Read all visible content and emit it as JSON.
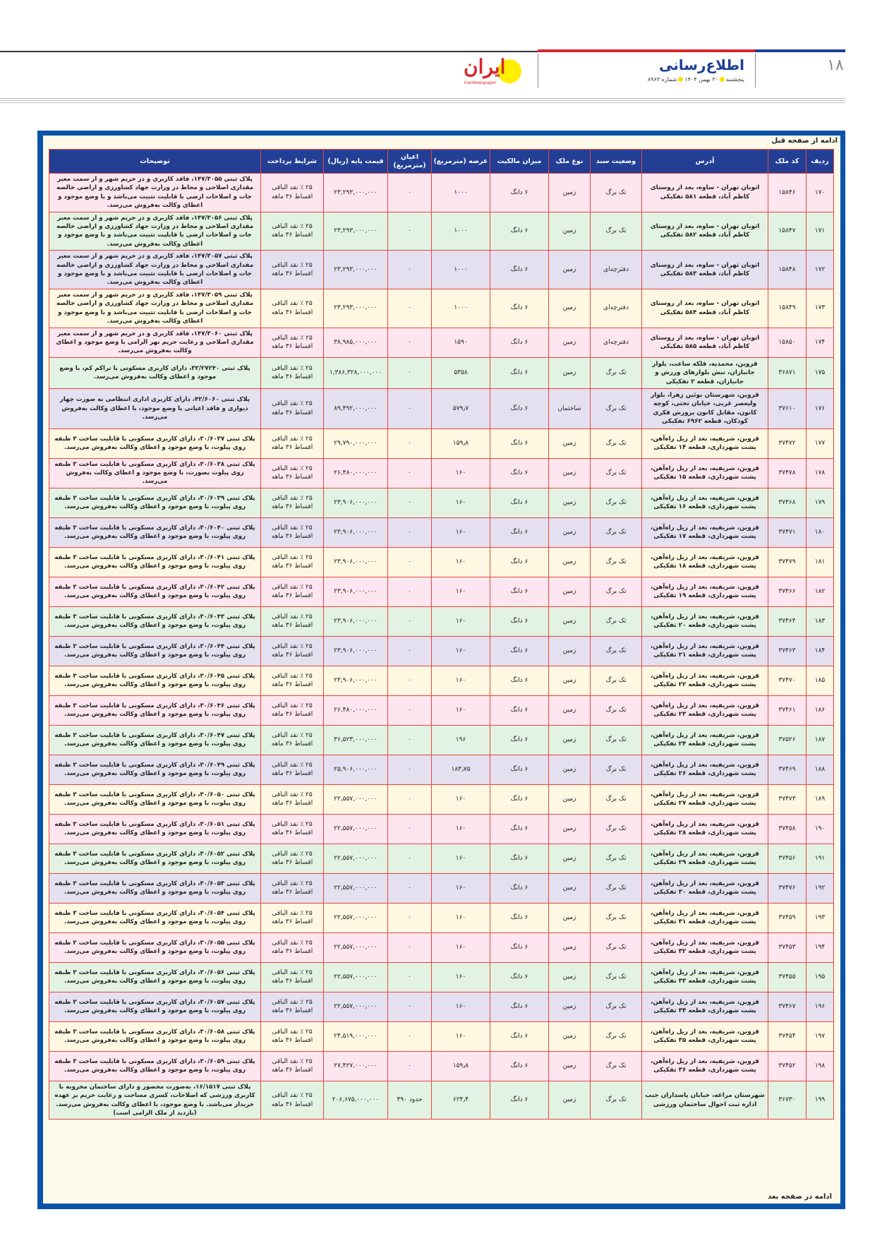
{
  "header": {
    "page_number": "۱۸",
    "section_title": "اطلاع‌رسانی",
    "day": "پنجشنبه",
    "date": "۳۰ بهمن ۱۴۰۴",
    "issue": "شماره ۸۹۶۳",
    "logo_text": "ایران",
    "logo_sub": "IranNewspaper"
  },
  "colors": {
    "header_blue": "#233f95",
    "frame_blue": "#0b53a8",
    "border_red": "#e5473f",
    "row_cycle": [
      "#fde6ef",
      "#e2f2e3",
      "#e4e0ef",
      "#fef8e3"
    ]
  },
  "table": {
    "continued_from": "ادامه از صفحه قبل",
    "continued_to": "ادامه در صفحه بعد",
    "columns": [
      "ردیف",
      "کد ملک",
      "آدرس",
      "وضعیت سند",
      "نوع ملک",
      "میزان مالکیت",
      "عرصه (مترمربع)",
      "اعیان (مترمربع)",
      "قیمت پایه (ریال)",
      "شرایط پرداخت",
      "توضیحات"
    ],
    "rows": [
      {
        "n": "۱۷۰",
        "code": "۱۵۸۴۶",
        "addr": "اتوبان تهران - ساوه، بعد از روستای کاظم آباد، قطعه ۵۸۱ تفکیکی",
        "doc": "تک برگ",
        "type": "زمین",
        "own": "۶ دانگ",
        "area": "۱۰۰۰",
        "bldg": "۰",
        "price": "۲۳,۲۹۳,۰۰۰,۰۰۰",
        "pay": "۲۵ ٪ نقد الباقی اقساط ۳۶ ماهه",
        "desc": "پلاک ثبتی ۱۴۷/۳۰۵۵، فاقد کاربری و در حریم شهر و از سمت معبر مقداری اصلاحی و محاط در وزارت جهاد کشاورزی و اراضی خالصه جات و اصلاحات ارضی با قابلیت تثبیت می‌باشد و با وضع موجود و اعطای وکالت به‌فروش می‌رسد."
      },
      {
        "n": "۱۷۱",
        "code": "۱۵۸۴۷",
        "addr": "اتوبان تهران - ساوه، بعد از روستای کاظم آباد، قطعه ۵۸۲ تفکیکی",
        "doc": "تک برگ",
        "type": "زمین",
        "own": "۶ دانگ",
        "area": "۱۰۰۰",
        "bldg": "۰",
        "price": "۲۳,۲۹۳,۰۰۰,۰۰۰",
        "pay": "۲۵ ٪ نقد الباقی اقساط ۳۶ ماهه",
        "desc": "پلاک ثبتی ۱۴۷/۳۰۵۶، فاقد کاربری و در حریم شهر و از سمت معبر مقداری اصلاحی و محاط در وزارت جهاد کشاورزی و اراضی خالصه جات و اصلاحات ارضی با قابلیت تثبیت می‌باشد و با وضع موجود و اعطای وکالت به‌فروش می‌رسد."
      },
      {
        "n": "۱۷۲",
        "code": "۱۵۸۴۸",
        "addr": "اتوبان تهران - ساوه، بعد از روستای کاظم آباد، قطعه ۵۸۳ تفکیکی",
        "doc": "دفترچه‌ای",
        "type": "زمین",
        "own": "۶ دانگ",
        "area": "۱۰۰۰",
        "bldg": "۰",
        "price": "۲۳,۲۹۳,۰۰۰,۰۰۰",
        "pay": "۲۵ ٪ نقد الباقی اقساط ۳۶ ماهه",
        "desc": "پلاک ثبتی ۱۴۷/۳۰۵۷، فاقد کاربری و در حریم شهر و از سمت معبر مقداری اصلاحی و محاط در وزارت جهاد کشاورزی و اراضی خالصه جات و اصلاحات ارضی با قابلیت تثبیت می‌باشد و با وضع موجود و اعطای وکالت به‌فروش می‌رسد."
      },
      {
        "n": "۱۷۳",
        "code": "۱۵۸۴۹",
        "addr": "اتوبان تهران - ساوه، بعد از روستای کاظم آباد، قطعه ۵۸۴ تفکیکی",
        "doc": "دفترچه‌ای",
        "type": "زمین",
        "own": "۶ دانگ",
        "area": "۱۰۰۰",
        "bldg": "۰",
        "price": "۲۳,۲۹۳,۰۰۰,۰۰۰",
        "pay": "۲۵ ٪ نقد الباقی اقساط ۳۶ ماهه",
        "desc": "پلاک ثبتی ۱۴۷/۳۰۵۹، فاقد کاربری و در حریم شهر و از سمت معبر مقداری اصلاحی و محاط در وزارت جهاد کشاورزی و اراضی خالصه جات و اصلاحات ارضی با قابلیت تثبیت می‌باشد و با وضع موجود و اعطای وکالت به‌فروش می‌رسد."
      },
      {
        "n": "۱۷۴",
        "code": "۱۵۸۵۰",
        "addr": "اتوبان تهران - ساوه، بعد از روستای کاظم آباد، قطعه ۵۸۵ تفکیکی",
        "doc": "دفترچه‌ای",
        "type": "زمین",
        "own": "۶ دانگ",
        "area": "۱۵۹۰",
        "bldg": "۰",
        "price": "۳۸,۹۸۵,۰۰۰,۰۰۰",
        "pay": "۲۵ ٪ نقد الباقی اقساط ۳۶ ماهه",
        "desc": "پلاک ثبتی ۱۴۷/۳۰۶۰، فاقد کاربری و در حریم شهر و از سمت معبر مقداری اصلاحی و رعایت حریم نهر الزامی با وضع موجود و اعطای وکالت به‌فروش می‌رسد."
      },
      {
        "n": "۱۷۵",
        "code": "۳۶۸۷۱",
        "addr": "قزوین، محمدیه، فلکه ساعت، بلوار جانبازان، نبش بلوارهای ورزش و جانبازان، قطعه ۲ تفکیکی",
        "doc": "تک برگ",
        "type": "زمین",
        "own": "۶ دانگ",
        "area": "۵۳۵۸",
        "bldg": "۰",
        "price": "۱,۳۸۶,۳۲۸,۰۰۰,۰۰۰",
        "pay": "۲۵ ٪ نقد الباقی اقساط ۳۶ ماهه",
        "desc": "پلاک ثبتی ۳۲/۲۷۲۴۰، دارای کاربری مسکونی با تراکم کم، با وضع موجود و اعطای وکالت به‌فروش می‌رسد."
      },
      {
        "n": "۱۷۶",
        "code": "۳۷۶۱۰",
        "addr": "قزوین، شهرستان بوئین زهرا، بلوار ولیعصر غربی، خیابان تختی، کوچه کانون، مقابل کانون پرورش فکری کودکان، قطعه ۶۹۶۲ تفکیکی",
        "doc": "تک برگ",
        "type": "ساختمان",
        "own": "۶ دانگ",
        "area": "۵۷۹٫۷",
        "bldg": "۰",
        "price": "۸۹,۴۹۲,۰۰۰,۰۰۰",
        "pay": "۲۵ ٪ نقد الباقی اقساط ۳۶ ماهه",
        "desc": "پلاک ثبتی ۴۲/۶۰۶۰، دارای کاربری اداری انتظامی به صورت چهار دیواری و فاقد اعیانی با وضع موجود، با اعطای وکالت به‌فروش می‌رسد."
      },
      {
        "n": "۱۷۷",
        "code": "۳۷۴۷۲",
        "addr": "قزوین، شریفیه، بعد از ریل راه‌آهن، پشت شهرداری، قطعه ۱۴ تفکیکی",
        "doc": "تک برگ",
        "type": "زمین",
        "own": "۶ دانگ",
        "area": "۱۵۹٫۸",
        "bldg": "۰",
        "price": "۲۹,۷۹۰,۰۰۰,۰۰۰",
        "pay": "۲۵ ٪ نقد الباقی اقساط ۳۶ ماهه",
        "desc": "پلاک ثبتی ۳۰/۶۰۳۷، دارای کاربری مسکونی با قابلیت ساخت ۳ طبقه روی پیلوت، با وضع موجود و اعطای وکالت به‌فروش می‌رسد."
      },
      {
        "n": "۱۷۸",
        "code": "۳۷۴۷۸",
        "addr": "قزوین، شریفیه، بعد از ریل راه‌آهن، پشت شهرداری، قطعه ۱۵ تفکیکی",
        "doc": "تک برگ",
        "type": "زمین",
        "own": "۶ دانگ",
        "area": "۱۶۰",
        "bldg": "۰",
        "price": "۲۶,۴۸۰,۰۰۰,۰۰۰",
        "pay": "۲۵ ٪ نقد الباقی اقساط ۳۶ ماهه",
        "desc": "پلاک ثبتی ۳۰/۶۰۳۸، دارای کاربری مسکونی با قابلیت ساخت ۳ طبقه روی پیلوت بصورت، با وضع موجود و اعطای وکالت به‌فروش می‌رسد."
      },
      {
        "n": "۱۷۹",
        "code": "۳۷۴۶۸",
        "addr": "قزوین، شریفیه، بعد از ریل راه‌آهن، پشت شهرداری، قطعه ۱۶ تفکیکی",
        "doc": "تک برگ",
        "type": "زمین",
        "own": "۶ دانگ",
        "area": "۱۶۰",
        "bldg": "۰",
        "price": "۲۳,۹۰۶,۰۰۰,۰۰۰",
        "pay": "۲۵ ٪ نقد الباقی اقساط ۳۶ ماهه",
        "desc": "پلاک ثبتی ۳۰/۶۰۳۹، دارای کاربری مسکونی با قابلیت ساخت ۳ طبقه روی پیلوت، با وضع موجود و اعطای وکالت به‌فروش می‌رسد."
      },
      {
        "n": "۱۸۰",
        "code": "۳۷۴۷۱",
        "addr": "قزوین، شریفیه، بعد از ریل راه‌آهن، پشت شهرداری، قطعه ۱۷ تفکیکی",
        "doc": "تک برگ",
        "type": "زمین",
        "own": "۶ دانگ",
        "area": "۱۶۰",
        "bldg": "۰",
        "price": "۲۳,۹۰۶,۰۰۰,۰۰۰",
        "pay": "۲۵ ٪ نقد الباقی اقساط ۳۶ ماهه",
        "desc": "پلاک ثبتی ۳۰/۶۰۴۰، دارای کاربری مسکونی با قابلیت ساخت ۳ طبقه روی پیلوت، با وضع موجود و اعطای وکالت به‌فروش می‌رسد."
      },
      {
        "n": "۱۸۱",
        "code": "۳۷۴۷۹",
        "addr": "قزوین، شریفیه، بعد از ریل راه‌آهن، پشت شهرداری، قطعه ۱۸ تفکیکی",
        "doc": "تک برگ",
        "type": "زمین",
        "own": "۶ دانگ",
        "area": "۱۶۰",
        "bldg": "۰",
        "price": "۲۳,۹۰۶,۰۰۰,۰۰۰",
        "pay": "۲۵ ٪ نقد الباقی اقساط ۳۶ ماهه",
        "desc": "پلاک ثبتی ۳۰/۶۰۴۱، دارای کاربری مسکونی با قابلیت ساخت ۳ طبقه روی پیلوت، با وضع موجود و اعطای وکالت به‌فروش می‌رسد."
      },
      {
        "n": "۱۸۲",
        "code": "۳۷۴۶۶",
        "addr": "قزوین، شریفیه، بعد از ریل راه‌آهن، پشت شهرداری، قطعه ۱۹ تفکیکی",
        "doc": "تک برگ",
        "type": "زمین",
        "own": "۶ دانگ",
        "area": "۱۶۰",
        "bldg": "۰",
        "price": "۲۳,۹۰۶,۰۰۰,۰۰۰",
        "pay": "۲۵ ٪ نقد الباقی اقساط ۳۶ ماهه",
        "desc": "پلاک ثبتی ۳۰/۶۰۴۲، دارای کاربری مسکونی با قابلیت ساخت ۳ طبقه روی پیلوت، با وضع موجود و اعطای وکالت به‌فروش می‌رسد."
      },
      {
        "n": "۱۸۳",
        "code": "۳۷۴۶۴",
        "addr": "قزوین، شریفیه، بعد از ریل راه‌آهن، پشت شهرداری، قطعه ۲۰ تفکیکی",
        "doc": "تک برگ",
        "type": "زمین",
        "own": "۶ دانگ",
        "area": "۱۶۰",
        "bldg": "۰",
        "price": "۲۳,۹۰۶,۰۰۰,۰۰۰",
        "pay": "۲۵ ٪ نقد الباقی اقساط ۳۶ ماهه",
        "desc": "پلاک ثبتی ۳۰/۶۰۴۳، دارای کاربری مسکونی با قابلیت ساخت ۳ طبقه روی پیلوت، با وضع موجود و اعطای وکالت به‌فروش می‌رسد."
      },
      {
        "n": "۱۸۴",
        "code": "۳۷۴۶۳",
        "addr": "قزوین، شریفیه، بعد از ریل راه‌آهن، پشت شهرداری، قطعه ۲۱ تفکیکی",
        "doc": "تک برگ",
        "type": "زمین",
        "own": "۶ دانگ",
        "area": "۱۶۰",
        "bldg": "۰",
        "price": "۲۳,۹۰۶,۰۰۰,۰۰۰",
        "pay": "۲۵ ٪ نقد الباقی اقساط ۳۶ ماهه",
        "desc": "پلاک ثبتی ۳۰/۶۰۴۴، دارای کاربری مسکونی با قابلیت ساخت ۳ طبقه روی پیلوت، با وضع موجود و اعطای وکالت به‌فروش می‌رسد."
      },
      {
        "n": "۱۸۵",
        "code": "۳۷۴۷۰",
        "addr": "قزوین، شریفیه، بعد از ریل راه‌آهن، پشت شهرداری، قطعه ۲۲ تفکیکی",
        "doc": "تک برگ",
        "type": "زمین",
        "own": "۶ دانگ",
        "area": "۱۶۰",
        "bldg": "۰",
        "price": "۲۳,۹۰۶,۰۰۰,۰۰۰",
        "pay": "۲۵ ٪ نقد الباقی اقساط ۳۶ ماهه",
        "desc": "پلاک ثبتی ۳۰/۶۰۴۵، دارای کاربری مسکونی با قابلیت ساخت ۳ طبقه روی پیلوت، با وضع موجود و اعطای وکالت به‌فروش می‌رسد."
      },
      {
        "n": "۱۸۶",
        "code": "۳۷۴۶۱",
        "addr": "قزوین، شریفیه، بعد از ریل راه‌آهن، پشت شهرداری، قطعه ۲۳ تفکیکی",
        "doc": "تک برگ",
        "type": "زمین",
        "own": "۶ دانگ",
        "area": "۱۶۰",
        "bldg": "۰",
        "price": "۲۶,۴۸۰,۰۰۰,۰۰۰",
        "pay": "۲۵ ٪ نقد الباقی اقساط ۳۶ ماهه",
        "desc": "پلاک ثبتی ۳۰/۶۰۴۶، دارای کاربری مسکونی با قابلیت ساخت ۳ طبقه روی پیلوت، با وضع موجود و اعطای وکالت به‌فروش می‌رسد."
      },
      {
        "n": "۱۸۷",
        "code": "۳۷۵۲۶",
        "addr": "قزوین، شریفیه، بعد از ریل راه‌آهن، پشت شهرداری، قطعه ۲۴ تفکیکی",
        "doc": "تک برگ",
        "type": "زمین",
        "own": "۶ دانگ",
        "area": "۱۹۶",
        "bldg": "۰",
        "price": "۳۶,۵۲۳,۰۰۰,۰۰۰",
        "pay": "۲۵ ٪ نقد الباقی اقساط ۳۶ ماهه",
        "desc": "پلاک ثبتی ۳۰/۶۰۴۷، دارای کاربری مسکونی با قابلیت ساخت ۳ طبقه روی پیلوت، با وضع موجود و اعطای وکالت به‌فروش می‌رسد."
      },
      {
        "n": "۱۸۸",
        "code": "۳۷۴۶۹",
        "addr": "قزوین، شریفیه، بعد از ریل راه‌آهن، پشت شهرداری، قطعه ۲۶ تفکیکی",
        "doc": "تک برگ",
        "type": "زمین",
        "own": "۶ دانگ",
        "area": "۱۸۳٫۷۵",
        "bldg": "۰",
        "price": "۲۵,۹۰۶,۰۰۰,۰۰۰",
        "pay": "۲۵ ٪ نقد الباقی اقساط ۳۶ ماهه",
        "desc": "پلاک ثبتی ۳۰/۶۰۴۹، دارای کاربری مسکونی با قابلیت ساخت ۳ طبقه روی پیلوت، با وضع موجود و اعطای وکالت به‌فروش می‌رسد."
      },
      {
        "n": "۱۸۹",
        "code": "۳۷۴۷۳",
        "addr": "قزوین، شریفیه، بعد از ریل راه‌آهن، پشت شهرداری، قطعه ۲۷ تفکیکی",
        "doc": "تک برگ",
        "type": "زمین",
        "own": "۶ دانگ",
        "area": "۱۶۰",
        "bldg": "۰",
        "price": "۲۲,۵۵۷,۰۰۰,۰۰۰",
        "pay": "۲۵ ٪ نقد الباقی اقساط ۳۶ ماهه",
        "desc": "پلاک ثبتی ۳۰/۶۰۵۰، دارای کاربری مسکونی با قابلیت ساخت ۳ طبقه روی پیلوت، با وضع موجود و اعطای وکالت به‌فروش می‌رسد."
      },
      {
        "n": "۱۹۰",
        "code": "۳۷۴۵۸",
        "addr": "قزوین، شریفیه، بعد از ریل راه‌آهن، پشت شهرداری، قطعه ۲۸ تفکیکی",
        "doc": "تک برگ",
        "type": "زمین",
        "own": "۶ دانگ",
        "area": "۱۶۰",
        "bldg": "۰",
        "price": "۲۲,۵۵۷,۰۰۰,۰۰۰",
        "pay": "۲۵ ٪ نقد الباقی اقساط ۳۶ ماهه",
        "desc": "پلاک ثبتی ۳۰/۶۰۵۱، دارای کاربری مسکونی با قابلیت ساخت ۳ طبقه روی پیلوت، با وضع موجود و اعطای وکالت به‌فروش می‌رسد."
      },
      {
        "n": "۱۹۱",
        "code": "۳۷۴۵۶",
        "addr": "قزوین، شریفیه، بعد از ریل راه‌آهن، پشت شهرداری، قطعه ۲۹ تفکیکی",
        "doc": "تک برگ",
        "type": "زمین",
        "own": "۶ دانگ",
        "area": "۱۶۰",
        "bldg": "۰",
        "price": "۲۲,۵۵۷,۰۰۰,۰۰۰",
        "pay": "۲۵ ٪ نقد الباقی اقساط ۳۶ ماهه",
        "desc": "پلاک ثبتی ۳۰/۶۰۵۲، دارای کاربری مسکونی با قابلیت ساخت ۳ طبقه روی پیلوت، با وضع موجود و اعطای وکالت به‌فروش می‌رسد."
      },
      {
        "n": "۱۹۲",
        "code": "۳۷۴۷۶",
        "addr": "قزوین، شریفیه، بعد از ریل راه‌آهن، پشت شهرداری، قطعه ۳۰ تفکیکی",
        "doc": "تک برگ",
        "type": "زمین",
        "own": "۶ دانگ",
        "area": "۱۶۰",
        "bldg": "۰",
        "price": "۲۲,۵۵۷,۰۰۰,۰۰۰",
        "pay": "۲۵ ٪ نقد الباقی اقساط ۳۶ ماهه",
        "desc": "پلاک ثبتی ۳۰/۶۰۵۳، دارای کاربری مسکونی با قابلیت ساخت ۳ طبقه روی پیلوت، با وضع موجود و اعطای وکالت به‌فروش می‌رسد."
      },
      {
        "n": "۱۹۳",
        "code": "۳۷۴۵۹",
        "addr": "قزوین، شریفیه، بعد از ریل راه‌آهن، پشت شهرداری، قطعه ۳۱ تفکیکی",
        "doc": "تک برگ",
        "type": "زمین",
        "own": "۶ دانگ",
        "area": "۱۶۰",
        "bldg": "۰",
        "price": "۲۲,۵۵۷,۰۰۰,۰۰۰",
        "pay": "۲۵ ٪ نقد الباقی اقساط ۳۶ ماهه",
        "desc": "پلاک ثبتی ۳۰/۶۰۵۴، دارای کاربری مسکونی با قابلیت ساخت ۳ طبقه روی پیلوت، با وضع موجود و اعطای وکالت به‌فروش می‌رسد."
      },
      {
        "n": "۱۹۴",
        "code": "۳۷۴۵۳",
        "addr": "قزوین، شریفیه، بعد از ریل راه‌آهن، پشت شهرداری، قطعه ۳۲ تفکیکی",
        "doc": "تک برگ",
        "type": "زمین",
        "own": "۶ دانگ",
        "area": "۱۶۰",
        "bldg": "۰",
        "price": "۲۲,۵۵۷,۰۰۰,۰۰۰",
        "pay": "۲۵ ٪ نقد الباقی اقساط ۳۶ ماهه",
        "desc": "پلاک ثبتی ۳۰/۶۰۵۵، دارای کاربری مسکونی با قابلیت ساخت ۳ طبقه روی پیلوت، با وضع موجود و اعطای وکالت به‌فروش می‌رسد."
      },
      {
        "n": "۱۹۵",
        "code": "۳۷۴۵۵",
        "addr": "قزوین، شریفیه، بعد از ریل راه‌آهن، پشت شهرداری، قطعه ۳۳ تفکیکی",
        "doc": "تک برگ",
        "type": "زمین",
        "own": "۶ دانگ",
        "area": "۱۶۰",
        "bldg": "۰",
        "price": "۲۲,۵۵۷,۰۰۰,۰۰۰",
        "pay": "۲۵ ٪ نقد الباقی اقساط ۳۶ ماهه",
        "desc": "پلاک ثبتی ۳۰/۶۰۵۶، دارای کاربری مسکونی با قابلیت ساخت ۳ طبقه روی پیلوت، با وضع موجود و اعطای وکالت به‌فروش می‌رسد."
      },
      {
        "n": "۱۹۶",
        "code": "۳۷۴۶۷",
        "addr": "قزوین، شریفیه، بعد از ریل راه‌آهن، پشت شهرداری، قطعه ۳۴ تفکیکی",
        "doc": "تک برگ",
        "type": "زمین",
        "own": "۶ دانگ",
        "area": "۱۶۰",
        "bldg": "۰",
        "price": "۲۲,۵۵۷,۰۰۰,۰۰۰",
        "pay": "۲۵ ٪ نقد الباقی اقساط ۳۶ ماهه",
        "desc": "پلاک ثبتی ۳۰/۶۰۵۷، دارای کاربری مسکونی با قابلیت ساخت ۳ طبقه روی پیلوت، با وضع موجود و اعطای وکالت به‌فروش می‌رسد."
      },
      {
        "n": "۱۹۷",
        "code": "۳۷۴۵۴",
        "addr": "قزوین، شریفیه، بعد از ریل راه‌آهن، پشت شهرداری، قطعه ۳۵ تفکیکی",
        "doc": "تک برگ",
        "type": "زمین",
        "own": "۶ دانگ",
        "area": "۱۶۰",
        "bldg": "۰",
        "price": "۲۴,۵۱۹,۰۰۰,۰۰۰",
        "pay": "۲۵ ٪ نقد الباقی اقساط ۳۶ ماهه",
        "desc": "پلاک ثبتی ۳۰/۶۰۵۸، دارای کاربری مسکونی با قابلیت ساخت ۳ طبقه روی پیلوت، با وضع موجود و اعطای وکالت به‌فروش می‌رسد."
      },
      {
        "n": "۱۹۸",
        "code": "۳۷۴۵۲",
        "addr": "قزوین، شریفیه، بعد از ریل راه‌آهن، پشت شهرداری، قطعه ۳۶ تفکیکی",
        "doc": "تک برگ",
        "type": "زمین",
        "own": "۶ دانگ",
        "area": "۱۵۹٫۸",
        "bldg": "۰",
        "price": "۲۷,۴۲۷,۰۰۰,۰۰۰",
        "pay": "۲۵ ٪ نقد الباقی اقساط ۳۶ ماهه",
        "desc": "پلاک ثبتی ۳۰/۶۰۵۹، دارای کاربری مسکونی با قابلیت ساخت ۳ طبقه روی پیلوت، با وضع موجود و اعطای وکالت به‌فروش می‌رسد."
      },
      {
        "n": "۱۹۹",
        "code": "۳۶۷۳۰",
        "addr": "شهرستان مراغه، خیابان پاسداران جنب اداره ثبت احوال ساختمان ورزشی",
        "doc": "تک برگ",
        "type": "زمین",
        "own": "۶ دانگ",
        "area": "۶۲۴٫۴",
        "bldg": "حدود ۴۹۰",
        "price": "۲۰۶,۶۷۵,۰۰۰,۰۰۰",
        "pay": "۲۵ ٪ نقد الباقی اقساط ۳۶ ماهه",
        "desc": "پلاک ثبتی ۱۶/۱۵۱۷، به‌صورت محصور و دارای ساختمان مخروبه با کاربری ورزشی که اصلاحات، کسری مساحت و رعایت حریم بر عهده خریدار می‌باشد. با وضع موجود، با اعطای وکالت به‌فروش می‌رسد. (بازدید از ملک الزامی است)"
      }
    ]
  }
}
